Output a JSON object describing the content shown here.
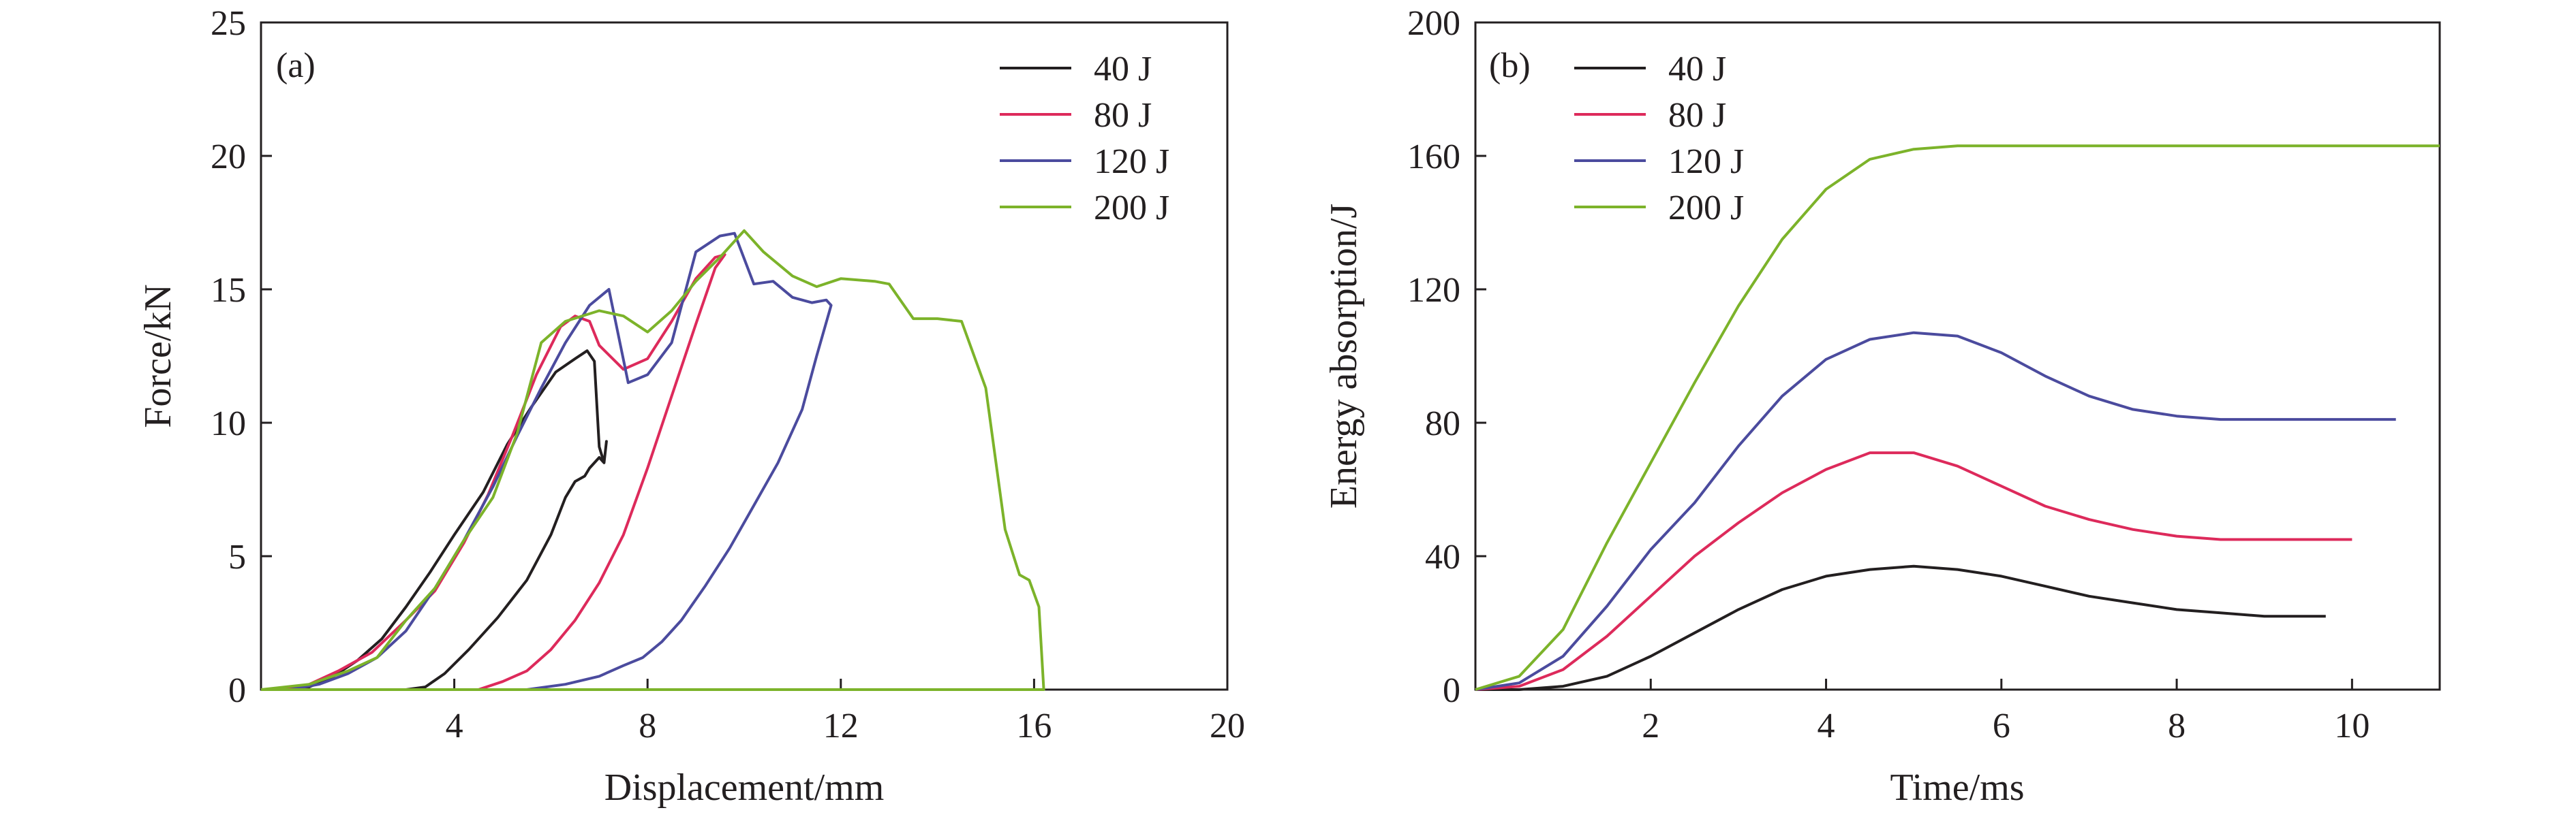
{
  "chart_data": [
    {
      "type": "line",
      "panel_label": "(a)",
      "xlabel": "Displacement/mm",
      "ylabel": "Force/kN",
      "xlim": [
        0,
        20
      ],
      "ylim": [
        0,
        25
      ],
      "xticks": [
        "4",
        "8",
        "12",
        "16",
        "20"
      ],
      "yticks": [
        "0",
        "5",
        "10",
        "15",
        "20",
        "25"
      ],
      "legend_position": "top-right",
      "series": [
        {
          "name": "40 J",
          "color": "#231f20",
          "points": [
            [
              0,
              0
            ],
            [
              1,
              0
            ],
            [
              3,
              0
            ],
            [
              3.4,
              0.1
            ],
            [
              3.8,
              0.6
            ],
            [
              4.3,
              1.5
            ],
            [
              4.9,
              2.7
            ],
            [
              5.5,
              4.1
            ],
            [
              6.0,
              5.8
            ],
            [
              6.3,
              7.2
            ],
            [
              6.5,
              7.8
            ],
            [
              6.7,
              8.0
            ],
            [
              6.8,
              8.3
            ],
            [
              7.0,
              8.7
            ],
            [
              7.1,
              8.5
            ],
            [
              7.15,
              9.3
            ],
            [
              7.1,
              8.5
            ],
            [
              7.0,
              9.1
            ],
            [
              6.9,
              12.3
            ],
            [
              6.75,
              12.7
            ],
            [
              6.5,
              12.4
            ],
            [
              6.1,
              11.9
            ],
            [
              5.6,
              10.6
            ],
            [
              5.1,
              9.2
            ],
            [
              4.6,
              7.4
            ],
            [
              4.0,
              5.8
            ],
            [
              3.5,
              4.4
            ],
            [
              3.0,
              3.1
            ],
            [
              2.5,
              1.9
            ],
            [
              2.0,
              1.1
            ],
            [
              1.5,
              0.5
            ],
            [
              1.0,
              0.1
            ],
            [
              0.5,
              0
            ],
            [
              0,
              0
            ]
          ]
        },
        {
          "name": "80 J",
          "color": "#dd2a5b",
          "points": [
            [
              0,
              0
            ],
            [
              4.5,
              0
            ],
            [
              5.0,
              0.3
            ],
            [
              5.5,
              0.7
            ],
            [
              6.0,
              1.5
            ],
            [
              6.5,
              2.6
            ],
            [
              7.0,
              4.0
            ],
            [
              7.5,
              5.8
            ],
            [
              8.0,
              8.3
            ],
            [
              8.5,
              11.0
            ],
            [
              9.0,
              13.7
            ],
            [
              9.4,
              15.8
            ],
            [
              9.6,
              16.3
            ],
            [
              9.4,
              16.2
            ],
            [
              9.0,
              15.4
            ],
            [
              8.5,
              13.8
            ],
            [
              8.0,
              12.4
            ],
            [
              7.5,
              12.0
            ],
            [
              7.0,
              12.9
            ],
            [
              6.8,
              13.8
            ],
            [
              6.5,
              14.0
            ],
            [
              6.2,
              13.6
            ],
            [
              5.7,
              11.8
            ],
            [
              5.2,
              9.5
            ],
            [
              4.7,
              7.3
            ],
            [
              4.2,
              5.5
            ],
            [
              3.6,
              3.7
            ],
            [
              3.0,
              2.6
            ],
            [
              2.3,
              1.4
            ],
            [
              1.6,
              0.7
            ],
            [
              1.0,
              0.2
            ],
            [
              0.5,
              0
            ],
            [
              0,
              0
            ]
          ]
        },
        {
          "name": "120 J",
          "color": "#4b4b9e",
          "points": [
            [
              0,
              0
            ],
            [
              5.5,
              0
            ],
            [
              6.3,
              0.2
            ],
            [
              7.0,
              0.5
            ],
            [
              7.5,
              0.9
            ],
            [
              7.9,
              1.2
            ],
            [
              8.3,
              1.8
            ],
            [
              8.7,
              2.6
            ],
            [
              9.2,
              3.9
            ],
            [
              9.7,
              5.3
            ],
            [
              10.2,
              6.9
            ],
            [
              10.7,
              8.5
            ],
            [
              11.2,
              10.5
            ],
            [
              11.5,
              12.5
            ],
            [
              11.8,
              14.4
            ],
            [
              11.7,
              14.6
            ],
            [
              11.4,
              14.5
            ],
            [
              11.0,
              14.7
            ],
            [
              10.6,
              15.3
            ],
            [
              10.2,
              15.2
            ],
            [
              9.8,
              17.1
            ],
            [
              9.5,
              17.0
            ],
            [
              9.0,
              16.4
            ],
            [
              8.5,
              13.0
            ],
            [
              8.0,
              11.8
            ],
            [
              7.6,
              11.5
            ],
            [
              7.2,
              15.0
            ],
            [
              6.8,
              14.4
            ],
            [
              6.3,
              13.0
            ],
            [
              5.8,
              11.3
            ],
            [
              5.3,
              9.5
            ],
            [
              4.8,
              7.6
            ],
            [
              4.2,
              5.6
            ],
            [
              3.6,
              3.8
            ],
            [
              3.0,
              2.2
            ],
            [
              2.4,
              1.2
            ],
            [
              1.8,
              0.6
            ],
            [
              1.2,
              0.2
            ],
            [
              0.6,
              0
            ],
            [
              0,
              0
            ]
          ]
        },
        {
          "name": "200 J",
          "color": "#7cb32a",
          "points": [
            [
              0,
              0
            ],
            [
              1.0,
              0.2
            ],
            [
              1.8,
              0.7
            ],
            [
              2.4,
              1.2
            ],
            [
              3.0,
              2.6
            ],
            [
              3.6,
              3.8
            ],
            [
              4.2,
              5.6
            ],
            [
              4.8,
              7.2
            ],
            [
              5.3,
              9.6
            ],
            [
              5.8,
              13.0
            ],
            [
              6.3,
              13.8
            ],
            [
              7.0,
              14.2
            ],
            [
              7.5,
              14.0
            ],
            [
              8.0,
              13.4
            ],
            [
              8.5,
              14.2
            ],
            [
              9.0,
              15.3
            ],
            [
              9.5,
              16.2
            ],
            [
              9.8,
              16.8
            ],
            [
              10.0,
              17.2
            ],
            [
              10.4,
              16.4
            ],
            [
              11.0,
              15.5
            ],
            [
              11.5,
              15.1
            ],
            [
              12.0,
              15.4
            ],
            [
              12.7,
              15.3
            ],
            [
              13.0,
              15.2
            ],
            [
              13.5,
              13.9
            ],
            [
              14.0,
              13.9
            ],
            [
              14.5,
              13.8
            ],
            [
              15.0,
              11.3
            ],
            [
              15.4,
              6.0
            ],
            [
              15.7,
              4.3
            ],
            [
              15.9,
              4.1
            ],
            [
              16.1,
              3.1
            ],
            [
              16.2,
              0
            ],
            [
              10,
              0
            ],
            [
              0,
              0
            ]
          ]
        }
      ]
    },
    {
      "type": "line",
      "panel_label": "(b)",
      "xlabel": "Time/ms",
      "ylabel": "Energy absorption/J",
      "xlim": [
        0,
        11
      ],
      "ylim": [
        0,
        200
      ],
      "xticks": [
        "2",
        "4",
        "6",
        "8",
        "10"
      ],
      "yticks": [
        "0",
        "40",
        "80",
        "120",
        "160",
        "200"
      ],
      "legend_position": "top-left",
      "series": [
        {
          "name": "40 J",
          "color": "#231f20",
          "points": [
            [
              0,
              0
            ],
            [
              0.5,
              0
            ],
            [
              1.0,
              1
            ],
            [
              1.5,
              4
            ],
            [
              2.0,
              10
            ],
            [
              2.5,
              17
            ],
            [
              3.0,
              24
            ],
            [
              3.5,
              30
            ],
            [
              4.0,
              34
            ],
            [
              4.5,
              36
            ],
            [
              5.0,
              37
            ],
            [
              5.5,
              36
            ],
            [
              6.0,
              34
            ],
            [
              6.5,
              31
            ],
            [
              7.0,
              28
            ],
            [
              7.5,
              26
            ],
            [
              8.0,
              24
            ],
            [
              8.5,
              23
            ],
            [
              9.0,
              22
            ],
            [
              9.7,
              22
            ]
          ]
        },
        {
          "name": "80 J",
          "color": "#dd2a5b",
          "points": [
            [
              0,
              0
            ],
            [
              0.5,
              1
            ],
            [
              1.0,
              6
            ],
            [
              1.5,
              16
            ],
            [
              2.0,
              28
            ],
            [
              2.5,
              40
            ],
            [
              3.0,
              50
            ],
            [
              3.5,
              59
            ],
            [
              4.0,
              66
            ],
            [
              4.5,
              71
            ],
            [
              5.0,
              71
            ],
            [
              5.5,
              67
            ],
            [
              6.0,
              61
            ],
            [
              6.5,
              55
            ],
            [
              7.0,
              51
            ],
            [
              7.5,
              48
            ],
            [
              8.0,
              46
            ],
            [
              8.5,
              45
            ],
            [
              9.0,
              45
            ],
            [
              10.0,
              45
            ]
          ]
        },
        {
          "name": "120 J",
          "color": "#4b4b9e",
          "points": [
            [
              0,
              0
            ],
            [
              0.5,
              2
            ],
            [
              1.0,
              10
            ],
            [
              1.5,
              25
            ],
            [
              2.0,
              42
            ],
            [
              2.5,
              56
            ],
            [
              3.0,
              73
            ],
            [
              3.5,
              88
            ],
            [
              4.0,
              99
            ],
            [
              4.5,
              105
            ],
            [
              5.0,
              107
            ],
            [
              5.5,
              106
            ],
            [
              6.0,
              101
            ],
            [
              6.5,
              94
            ],
            [
              7.0,
              88
            ],
            [
              7.5,
              84
            ],
            [
              8.0,
              82
            ],
            [
              8.5,
              81
            ],
            [
              9.0,
              81
            ],
            [
              10.5,
              81
            ]
          ]
        },
        {
          "name": "200 J",
          "color": "#7cb32a",
          "points": [
            [
              0,
              0
            ],
            [
              0.5,
              4
            ],
            [
              1.0,
              18
            ],
            [
              1.5,
              44
            ],
            [
              2.0,
              68
            ],
            [
              2.5,
              92
            ],
            [
              3.0,
              115
            ],
            [
              3.5,
              135
            ],
            [
              4.0,
              150
            ],
            [
              4.5,
              159
            ],
            [
              5.0,
              162
            ],
            [
              5.5,
              163
            ],
            [
              6.0,
              163
            ],
            [
              7.0,
              163
            ],
            [
              8.0,
              163
            ],
            [
              9.0,
              163
            ],
            [
              10.0,
              163
            ],
            [
              11.0,
              163
            ]
          ]
        }
      ]
    }
  ]
}
